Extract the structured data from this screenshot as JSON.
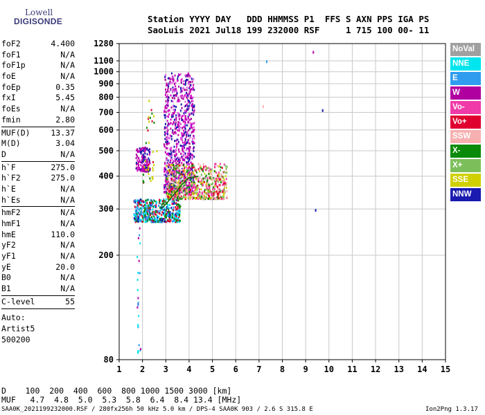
{
  "logo": {
    "line1": "Lowell",
    "line2": "DIGISONDE"
  },
  "header": {
    "labels": "Station YYYY DAY   DDD HHMMSS P1  FFS S AXN PPS IGA PS",
    "values": "SaoLuis 2021 Jul18 199 232000 RSF     1 715 100 00- 11"
  },
  "params": {
    "group1": [
      {
        "name": "foF2",
        "value": "4.400"
      },
      {
        "name": "foF1",
        "value": "N/A"
      },
      {
        "name": "foF1p",
        "value": "N/A"
      },
      {
        "name": "foE",
        "value": "N/A"
      },
      {
        "name": "foEp",
        "value": "0.35"
      },
      {
        "name": "fxI",
        "value": "5.45"
      },
      {
        "name": "foEs",
        "value": "N/A"
      },
      {
        "name": "fmin",
        "value": "2.80"
      }
    ],
    "group2": [
      {
        "name": "MUF(D)",
        "value": "13.37"
      },
      {
        "name": "M(D)",
        "value": "3.04"
      },
      {
        "name": "D",
        "value": "N/A"
      }
    ],
    "group3": [
      {
        "name": "h`F",
        "value": "275.0"
      },
      {
        "name": "h`F2",
        "value": "275.0"
      },
      {
        "name": "h`E",
        "value": "N/A"
      },
      {
        "name": "h`Es",
        "value": "N/A"
      }
    ],
    "group4": [
      {
        "name": "hmF2",
        "value": "N/A"
      },
      {
        "name": "hmF1",
        "value": "N/A"
      },
      {
        "name": "hmE",
        "value": "110.0"
      },
      {
        "name": "yF2",
        "value": "N/A"
      },
      {
        "name": "yF1",
        "value": "N/A"
      },
      {
        "name": "yE",
        "value": "20.0"
      },
      {
        "name": "B0",
        "value": "N/A"
      },
      {
        "name": "B1",
        "value": "N/A"
      }
    ],
    "group5": [
      {
        "name": "C-level",
        "value": "55"
      }
    ]
  },
  "auto": {
    "line1": "Auto:",
    "line2": "Artist5",
    "line3": "500200"
  },
  "legend": [
    {
      "label": "NoVal",
      "color": "#a0a0a0"
    },
    {
      "label": "NNE",
      "color": "#00e5ee"
    },
    {
      "label": "E",
      "color": "#2f9cf0"
    },
    {
      "label": "W",
      "color": "#b000a0"
    },
    {
      "label": "Vo-",
      "color": "#f03aa8"
    },
    {
      "label": "Vo+",
      "color": "#e00030"
    },
    {
      "label": "SSW",
      "color": "#f6b0b0"
    },
    {
      "label": "X-",
      "color": "#0a8a0a"
    },
    {
      "label": "X+",
      "color": "#7cbf5a"
    },
    {
      "label": "SSE",
      "color": "#d0d000"
    },
    {
      "label": "NNW",
      "color": "#1a1ab0"
    }
  ],
  "bottom": {
    "line1": "D    100  200  400  600  800 1000 1500 3000 [km]",
    "line2": "MUF   4.7  4.8  5.0  5.3  5.8  6.4  8.4 13.4 [MHz]"
  },
  "footer": {
    "left": "SAA0K_2021199232000.RSF / 280fx256h 50 kHz 5.0 km / DPS-4 SAA0K 903 / 2.6 S 315.8 E",
    "right": "Ion2Png 1.3.17"
  },
  "chart_data": {
    "type": "scatter",
    "title": "",
    "xlabel": "",
    "ylabel": "",
    "xlim": [
      1,
      15
    ],
    "ylim": [
      80,
      1280
    ],
    "y_scale": "log",
    "x_ticks": [
      1,
      2,
      3,
      4,
      5,
      6,
      7,
      8,
      9,
      10,
      11,
      12,
      13,
      14,
      15
    ],
    "y_ticks": [
      80,
      200,
      300,
      400,
      500,
      600,
      700,
      800,
      900,
      1000,
      1100,
      1280
    ],
    "grid": true,
    "legend_position": "right",
    "trace": {
      "name": "",
      "color": "#0a6a0a",
      "points": [
        [
          2.8,
          300
        ],
        [
          3.1,
          320
        ],
        [
          3.4,
          345
        ],
        [
          3.7,
          372
        ],
        [
          4.0,
          395
        ],
        [
          4.4,
          400
        ]
      ]
    },
    "clusters": [
      {
        "x": [
          2.9,
          4.2
        ],
        "y": [
          350,
          1000
        ],
        "n": 900,
        "colors": [
          "#b000a0",
          "#d000c0",
          "#e060e0",
          "#1a1ab0"
        ]
      },
      {
        "x": [
          1.7,
          2.3
        ],
        "y": [
          420,
          520
        ],
        "n": 140,
        "colors": [
          "#b000a0",
          "#1a1ab0",
          "#d000c0"
        ]
      },
      {
        "x": [
          3.0,
          5.6
        ],
        "y": [
          330,
          450
        ],
        "n": 700,
        "colors": [
          "#e00030",
          "#f03aa8",
          "#0a8a0a",
          "#d0d000",
          "#7cbf5a",
          "#f6b0b0"
        ]
      },
      {
        "x": [
          1.6,
          3.6
        ],
        "y": [
          270,
          330
        ],
        "n": 500,
        "colors": [
          "#2f9cf0",
          "#00e5ee",
          "#1a1ab0",
          "#e00030",
          "#0a8a0a"
        ]
      },
      {
        "x": [
          1.75,
          1.9
        ],
        "y": [
          85,
          260
        ],
        "n": 25,
        "colors": [
          "#2f9cf0",
          "#00e5ee",
          "#b000a0"
        ]
      },
      {
        "x": [
          2.0,
          2.6
        ],
        "y": [
          380,
          800
        ],
        "n": 40,
        "colors": [
          "#d0d000",
          "#0a8a0a",
          "#e00030"
        ]
      }
    ],
    "isolated_points": [
      {
        "x": 7.3,
        "y": 1105,
        "color": "#2f9cf0"
      },
      {
        "x": 9.3,
        "y": 1200,
        "color": "#b000a0"
      },
      {
        "x": 9.7,
        "y": 720,
        "color": "#1a1ab0"
      },
      {
        "x": 9.4,
        "y": 300,
        "color": "#1a1ab0"
      },
      {
        "x": 7.15,
        "y": 745,
        "color": "#f6b0b0"
      }
    ]
  }
}
